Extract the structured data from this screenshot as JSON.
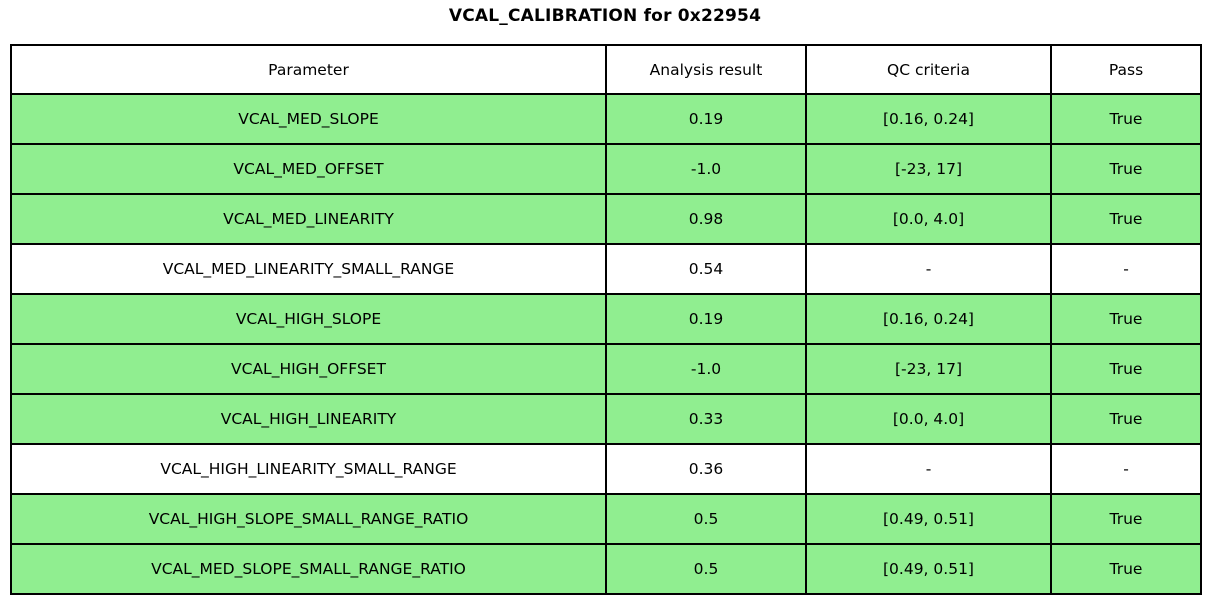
{
  "chart_data": {
    "type": "table",
    "title": "VCAL_CALIBRATION for 0x22954",
    "headers": [
      "Parameter",
      "Analysis result",
      "QC criteria",
      "Pass"
    ],
    "rows": [
      {
        "parameter": "VCAL_MED_SLOPE",
        "result": "0.19",
        "criteria": "[0.16, 0.24]",
        "pass": "True",
        "highlight": true
      },
      {
        "parameter": "VCAL_MED_OFFSET",
        "result": "-1.0",
        "criteria": "[-23, 17]",
        "pass": "True",
        "highlight": true
      },
      {
        "parameter": "VCAL_MED_LINEARITY",
        "result": "0.98",
        "criteria": "[0.0, 4.0]",
        "pass": "True",
        "highlight": true
      },
      {
        "parameter": "VCAL_MED_LINEARITY_SMALL_RANGE",
        "result": "0.54",
        "criteria": "-",
        "pass": "-",
        "highlight": false
      },
      {
        "parameter": "VCAL_HIGH_SLOPE",
        "result": "0.19",
        "criteria": "[0.16, 0.24]",
        "pass": "True",
        "highlight": true
      },
      {
        "parameter": "VCAL_HIGH_OFFSET",
        "result": "-1.0",
        "criteria": "[-23, 17]",
        "pass": "True",
        "highlight": true
      },
      {
        "parameter": "VCAL_HIGH_LINEARITY",
        "result": "0.33",
        "criteria": "[0.0, 4.0]",
        "pass": "True",
        "highlight": true
      },
      {
        "parameter": "VCAL_HIGH_LINEARITY_SMALL_RANGE",
        "result": "0.36",
        "criteria": "-",
        "pass": "-",
        "highlight": false
      },
      {
        "parameter": "VCAL_HIGH_SLOPE_SMALL_RANGE_RATIO",
        "result": "0.5",
        "criteria": "[0.49, 0.51]",
        "pass": "True",
        "highlight": true
      },
      {
        "parameter": "VCAL_MED_SLOPE_SMALL_RANGE_RATIO",
        "result": "0.5",
        "criteria": "[0.49, 0.51]",
        "pass": "True",
        "highlight": true
      }
    ]
  },
  "colors": {
    "pass_row_bg": "#90EE90",
    "neutral_row_bg": "#FFFFFF",
    "header_bg": "#FFFFFF",
    "border": "#000000",
    "text": "#000000"
  }
}
